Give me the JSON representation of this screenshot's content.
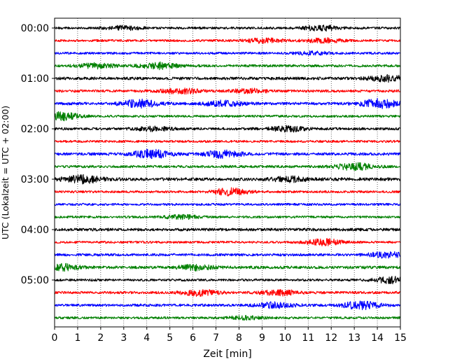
{
  "chart_data": {
    "type": "line",
    "title": "",
    "xlabel": "Zeit  [min]",
    "ylabel": "UTC (Lokalzeit = UTC + 02:00)",
    "xlim": [
      0,
      15
    ],
    "x_ticks": [
      "0",
      "1",
      "2",
      "3",
      "4",
      "5",
      "6",
      "7",
      "8",
      "9",
      "10",
      "11",
      "12",
      "13",
      "14",
      "15"
    ],
    "y_ticks": [
      {
        "label": "00:00",
        "trace": 0
      },
      {
        "label": "01:00",
        "trace": 4
      },
      {
        "label": "02:00",
        "trace": 8
      },
      {
        "label": "03:00",
        "trace": 12
      },
      {
        "label": "04:00",
        "trace": 16
      },
      {
        "label": "05:00",
        "trace": 20
      }
    ],
    "grid": "vertical dotted",
    "trace_interval_min": 15,
    "trace_colors": [
      "#000000",
      "#ff0000",
      "#0000ff",
      "#008000"
    ],
    "traces": [
      {
        "start": "00:00",
        "color": "#000000",
        "base_amplitude": 1.6,
        "events": [
          {
            "t": 3.0,
            "amp": 2.5
          },
          {
            "t": 11.5,
            "amp": 3.5
          }
        ]
      },
      {
        "start": "00:15",
        "color": "#ff0000",
        "base_amplitude": 1.6,
        "events": [
          {
            "t": 9.1,
            "amp": 3.0
          },
          {
            "t": 11.7,
            "amp": 3.0
          }
        ]
      },
      {
        "start": "00:30",
        "color": "#0000ff",
        "base_amplitude": 1.6,
        "events": [
          {
            "t": 11.2,
            "amp": 2.0
          }
        ]
      },
      {
        "start": "00:45",
        "color": "#008000",
        "base_amplitude": 1.8,
        "events": [
          {
            "t": 4.5,
            "amp": 4.0
          },
          {
            "t": 1.8,
            "amp": 3.0
          }
        ]
      },
      {
        "start": "01:00",
        "color": "#000000",
        "base_amplitude": 2.0,
        "events": [
          {
            "t": 14.5,
            "amp": 4.0
          }
        ]
      },
      {
        "start": "01:15",
        "color": "#ff0000",
        "base_amplitude": 1.8,
        "events": [
          {
            "t": 5.5,
            "amp": 3.5
          },
          {
            "t": 8.5,
            "amp": 2.5
          }
        ]
      },
      {
        "start": "01:30",
        "color": "#0000ff",
        "base_amplitude": 2.0,
        "events": [
          {
            "t": 3.7,
            "amp": 5.0
          },
          {
            "t": 7.3,
            "amp": 3.5
          },
          {
            "t": 14.1,
            "amp": 6.0
          }
        ]
      },
      {
        "start": "01:45",
        "color": "#008000",
        "base_amplitude": 1.6,
        "events": [
          {
            "t": 0.2,
            "amp": 6.0
          }
        ]
      },
      {
        "start": "02:00",
        "color": "#000000",
        "base_amplitude": 1.8,
        "events": [
          {
            "t": 10.1,
            "amp": 3.5
          },
          {
            "t": 4.3,
            "amp": 2.5
          }
        ]
      },
      {
        "start": "02:15",
        "color": "#ff0000",
        "base_amplitude": 1.6,
        "events": []
      },
      {
        "start": "02:30",
        "color": "#0000ff",
        "base_amplitude": 2.0,
        "events": [
          {
            "t": 4.2,
            "amp": 5.5
          },
          {
            "t": 7.3,
            "amp": 4.5
          }
        ]
      },
      {
        "start": "02:45",
        "color": "#008000",
        "base_amplitude": 1.8,
        "events": [
          {
            "t": 13.0,
            "amp": 4.5
          }
        ]
      },
      {
        "start": "03:00",
        "color": "#000000",
        "base_amplitude": 2.2,
        "events": [
          {
            "t": 1.2,
            "amp": 5.0
          },
          {
            "t": 10.2,
            "amp": 3.0
          }
        ]
      },
      {
        "start": "03:15",
        "color": "#ff0000",
        "base_amplitude": 1.6,
        "events": [
          {
            "t": 7.6,
            "amp": 4.5
          }
        ]
      },
      {
        "start": "03:30",
        "color": "#0000ff",
        "base_amplitude": 1.6,
        "events": []
      },
      {
        "start": "03:45",
        "color": "#008000",
        "base_amplitude": 1.6,
        "events": [
          {
            "t": 5.5,
            "amp": 2.5
          }
        ]
      },
      {
        "start": "04:00",
        "color": "#000000",
        "base_amplitude": 2.0,
        "events": []
      },
      {
        "start": "04:15",
        "color": "#ff0000",
        "base_amplitude": 1.6,
        "events": [
          {
            "t": 11.7,
            "amp": 4.5
          }
        ]
      },
      {
        "start": "04:30",
        "color": "#0000ff",
        "base_amplitude": 1.8,
        "events": [
          {
            "t": 14.4,
            "amp": 3.5
          }
        ]
      },
      {
        "start": "04:45",
        "color": "#008000",
        "base_amplitude": 2.0,
        "events": [
          {
            "t": 0.3,
            "amp": 4.0
          },
          {
            "t": 6.2,
            "amp": 3.5
          }
        ]
      },
      {
        "start": "05:00",
        "color": "#000000",
        "base_amplitude": 1.6,
        "events": [
          {
            "t": 14.6,
            "amp": 4.0
          }
        ]
      },
      {
        "start": "05:15",
        "color": "#ff0000",
        "base_amplitude": 1.8,
        "events": [
          {
            "t": 6.3,
            "amp": 4.0
          },
          {
            "t": 9.8,
            "amp": 3.5
          }
        ]
      },
      {
        "start": "05:30",
        "color": "#0000ff",
        "base_amplitude": 1.8,
        "events": [
          {
            "t": 13.3,
            "amp": 5.0
          },
          {
            "t": 9.6,
            "amp": 3.5
          }
        ]
      },
      {
        "start": "05:45",
        "color": "#008000",
        "base_amplitude": 1.6,
        "events": [
          {
            "t": 8.2,
            "amp": 2.0
          }
        ]
      }
    ]
  }
}
